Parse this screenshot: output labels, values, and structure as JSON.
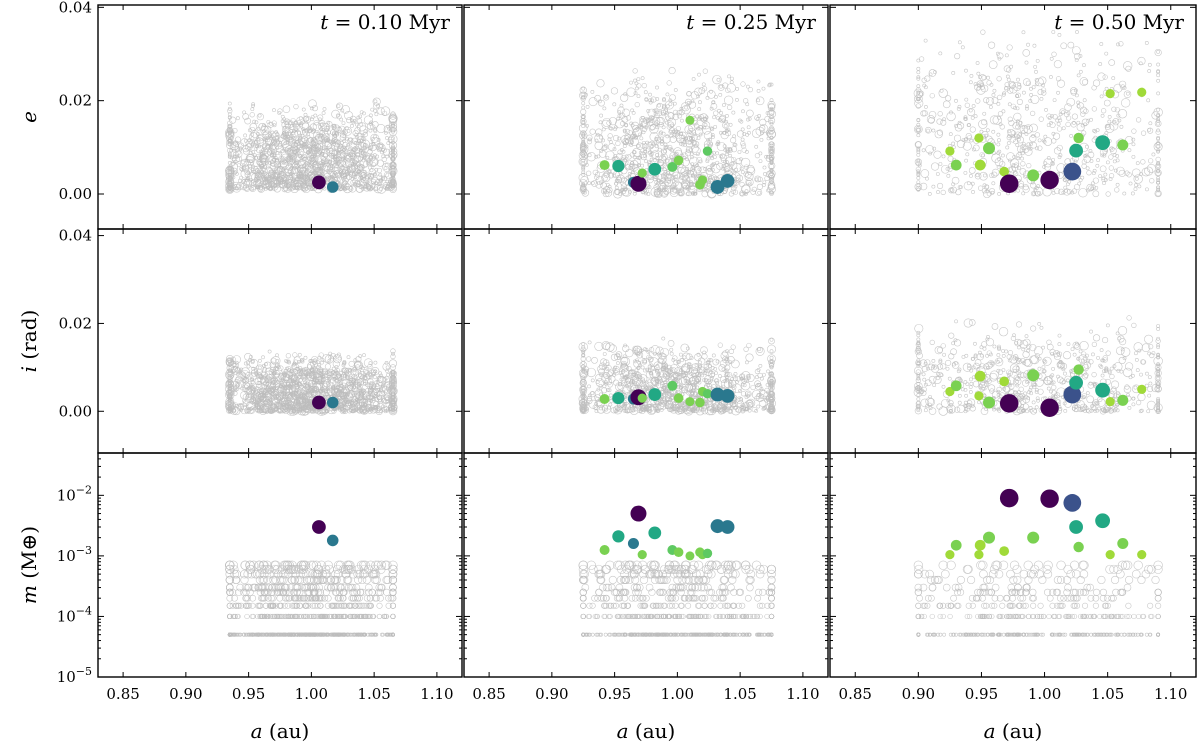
{
  "chart_data": {
    "type": "scatter",
    "title": "",
    "times": [
      "t = 0.10 Myr",
      "t = 0.25 Myr",
      "t = 0.50 Myr"
    ],
    "time_labels": [
      {
        "var": "t",
        "text": "= 0.10 Myr"
      },
      {
        "var": "t",
        "text": "= 0.25 Myr"
      },
      {
        "var": "t",
        "text": "= 0.50 Myr"
      }
    ],
    "xlabel": {
      "var": "a",
      "unit": "(au)"
    },
    "xlim": [
      0.83,
      1.12
    ],
    "xticks": [
      0.85,
      0.9,
      0.95,
      1.0,
      1.05,
      1.1
    ],
    "xtick_labels": [
      "0.85",
      "0.90",
      "0.95",
      "1.00",
      "1.05",
      "1.10"
    ],
    "rows": [
      {
        "key": "e",
        "ylabel": {
          "var": "e",
          "unit": ""
        },
        "yscale": "linear",
        "ylim": [
          -0.0075,
          0.0405
        ],
        "yticks": [
          0.0,
          0.02,
          0.04
        ],
        "ytick_labels": [
          "0.00",
          "0.02",
          "0.04"
        ]
      },
      {
        "key": "i",
        "ylabel": {
          "var": "i",
          "unit": "(rad)"
        },
        "yscale": "linear",
        "ylim": [
          -0.0095,
          0.0415
        ],
        "yticks": [
          0.0,
          0.02,
          0.04
        ],
        "ytick_labels": [
          "0.00",
          "0.02",
          "0.04"
        ]
      },
      {
        "key": "m",
        "ylabel": {
          "var": "m",
          "unit": "(M⊕)"
        },
        "yscale": "log",
        "ylim": [
          1e-05,
          0.05
        ],
        "yticks": [
          1e-05,
          0.0001,
          0.001,
          0.01
        ],
        "ytick_labels": [
          {
            "base": "10",
            "exp": "−5"
          },
          {
            "base": "10",
            "exp": "−4"
          },
          {
            "base": "10",
            "exp": "−3"
          },
          {
            "base": "10",
            "exp": "−2"
          }
        ]
      }
    ],
    "background_swarm": [
      {
        "a_range": [
          0.935,
          1.065
        ],
        "e_range": [
          0.001,
          0.02
        ],
        "i_range": [
          0.0,
          0.014
        ],
        "count": 1500
      },
      {
        "a_range": [
          0.925,
          1.075
        ],
        "e_range": [
          0.0,
          0.027
        ],
        "i_range": [
          0.0,
          0.017
        ],
        "count": 1100
      },
      {
        "a_range": [
          0.9,
          1.09
        ],
        "e_range": [
          0.0,
          0.036
        ],
        "i_range": [
          0.0,
          0.022
        ],
        "count": 750
      }
    ],
    "background_mass_floor": 5e-05,
    "background_mass_levels": [
      0.0001,
      0.00015,
      0.0002,
      0.00025,
      0.0003,
      0.0004,
      0.0005,
      0.0006,
      0.0007
    ],
    "swarm_color": "#bdbdbd",
    "embryos": [
      [
        {
          "a": 1.006,
          "e": 0.0025,
          "i": 0.002,
          "m": 0.003,
          "color": "#440154"
        },
        {
          "a": 1.017,
          "e": 0.0015,
          "i": 0.002,
          "m": 0.0018,
          "color": "#2a788e"
        }
      ],
      [
        {
          "a": 0.942,
          "e": 0.0062,
          "i": 0.0028,
          "m": 0.00125,
          "color": "#7ad151"
        },
        {
          "a": 0.953,
          "e": 0.006,
          "i": 0.003,
          "m": 0.0021,
          "color": "#22a884"
        },
        {
          "a": 0.965,
          "e": 0.0025,
          "i": 0.0028,
          "m": 0.0016,
          "color": "#2a788e"
        },
        {
          "a": 0.969,
          "e": 0.0022,
          "i": 0.0032,
          "m": 0.005,
          "color": "#440154"
        },
        {
          "a": 0.972,
          "e": 0.0045,
          "i": 0.003,
          "m": 0.00105,
          "color": "#7ad151"
        },
        {
          "a": 0.982,
          "e": 0.0053,
          "i": 0.0038,
          "m": 0.0024,
          "color": "#22a884"
        },
        {
          "a": 0.996,
          "e": 0.0058,
          "i": 0.0058,
          "m": 0.00125,
          "color": "#5ec962"
        },
        {
          "a": 1.001,
          "e": 0.0072,
          "i": 0.003,
          "m": 0.00115,
          "color": "#7ad151"
        },
        {
          "a": 1.01,
          "e": 0.0158,
          "i": 0.0022,
          "m": 0.001,
          "color": "#7ad151"
        },
        {
          "a": 1.018,
          "e": 0.002,
          "i": 0.002,
          "m": 0.00115,
          "color": "#7ad151"
        },
        {
          "a": 1.02,
          "e": 0.003,
          "i": 0.0045,
          "m": 0.00105,
          "color": "#7ad151"
        },
        {
          "a": 1.024,
          "e": 0.0092,
          "i": 0.004,
          "m": 0.0011,
          "color": "#5ec962"
        },
        {
          "a": 1.032,
          "e": 0.0015,
          "i": 0.0038,
          "m": 0.0031,
          "color": "#2a788e"
        },
        {
          "a": 1.04,
          "e": 0.0028,
          "i": 0.0035,
          "m": 0.003,
          "color": "#2a788e"
        }
      ],
      [
        {
          "a": 0.925,
          "e": 0.0092,
          "i": 0.0045,
          "m": 0.00105,
          "color": "#a0da39"
        },
        {
          "a": 0.93,
          "e": 0.0062,
          "i": 0.0058,
          "m": 0.0015,
          "color": "#7ad151"
        },
        {
          "a": 0.948,
          "e": 0.012,
          "i": 0.0035,
          "m": 0.00105,
          "color": "#a0da39"
        },
        {
          "a": 0.949,
          "e": 0.0062,
          "i": 0.008,
          "m": 0.0015,
          "color": "#a0da39"
        },
        {
          "a": 0.956,
          "e": 0.0098,
          "i": 0.002,
          "m": 0.002,
          "color": "#7ad151"
        },
        {
          "a": 0.968,
          "e": 0.0048,
          "i": 0.0068,
          "m": 0.0012,
          "color": "#a0da39"
        },
        {
          "a": 0.972,
          "e": 0.0022,
          "i": 0.0018,
          "m": 0.009,
          "color": "#440154"
        },
        {
          "a": 0.991,
          "e": 0.004,
          "i": 0.0082,
          "m": 0.002,
          "color": "#7ad151"
        },
        {
          "a": 1.004,
          "e": 0.003,
          "i": 0.0008,
          "m": 0.0088,
          "color": "#440154"
        },
        {
          "a": 1.022,
          "e": 0.0048,
          "i": 0.0038,
          "m": 0.0075,
          "color": "#3b528b"
        },
        {
          "a": 1.025,
          "e": 0.0093,
          "i": 0.0065,
          "m": 0.003,
          "color": "#22a884"
        },
        {
          "a": 1.027,
          "e": 0.012,
          "i": 0.0095,
          "m": 0.0014,
          "color": "#7ad151"
        },
        {
          "a": 1.046,
          "e": 0.011,
          "i": 0.0048,
          "m": 0.0038,
          "color": "#22a884"
        },
        {
          "a": 1.052,
          "e": 0.0215,
          "i": 0.0022,
          "m": 0.00105,
          "color": "#a0da39"
        },
        {
          "a": 1.062,
          "e": 0.0105,
          "i": 0.0025,
          "m": 0.0016,
          "color": "#7ad151"
        },
        {
          "a": 1.077,
          "e": 0.0218,
          "i": 0.005,
          "m": 0.00105,
          "color": "#a0da39"
        }
      ]
    ]
  }
}
